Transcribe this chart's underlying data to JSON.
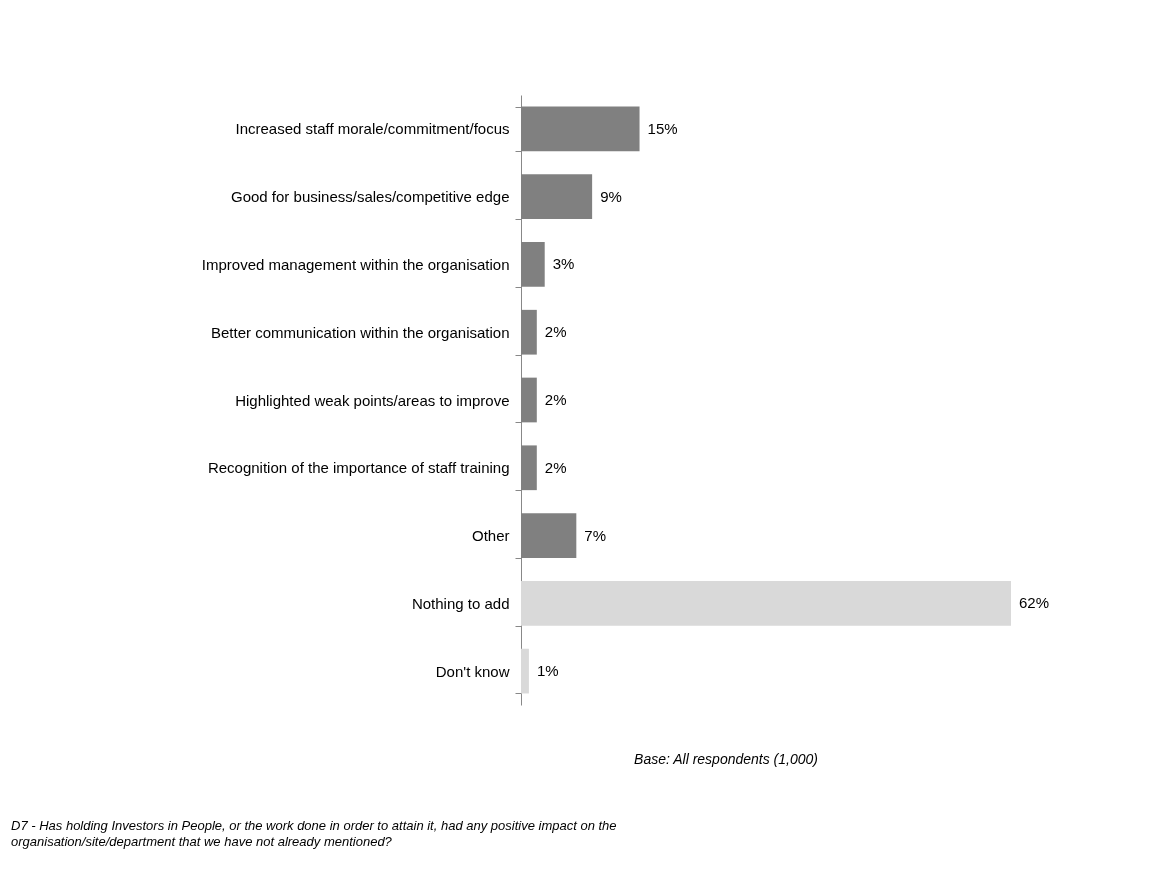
{
  "chart_data": {
    "type": "bar",
    "orientation": "horizontal",
    "categories": [
      "Increased staff morale/commitment/focus",
      "Good for business/sales/competitive edge",
      "Improved management within the organisation",
      "Better communication within the organisation",
      "Highlighted weak points/areas to improve",
      "Recognition of the importance of staff training",
      "Other",
      "Nothing to add",
      "Don't know"
    ],
    "values": [
      15,
      9,
      3,
      2,
      2,
      2,
      7,
      62,
      1
    ],
    "colors": [
      "#808080",
      "#808080",
      "#808080",
      "#808080",
      "#808080",
      "#808080",
      "#808080",
      "#d9d9d9",
      "#d9d9d9"
    ],
    "value_labels": [
      "15%",
      "9%",
      "3%",
      "2%",
      "2%",
      "2%",
      "7%",
      "62%",
      "1%"
    ],
    "tick_labels": "y",
    "annotations": [
      "Base: All respondents (1,000)",
      "D7 - Has holding Investors in People, or the work done in order to attain it, had any positive impact on the organisation/site/department that we have not already mentioned?"
    ]
  }
}
